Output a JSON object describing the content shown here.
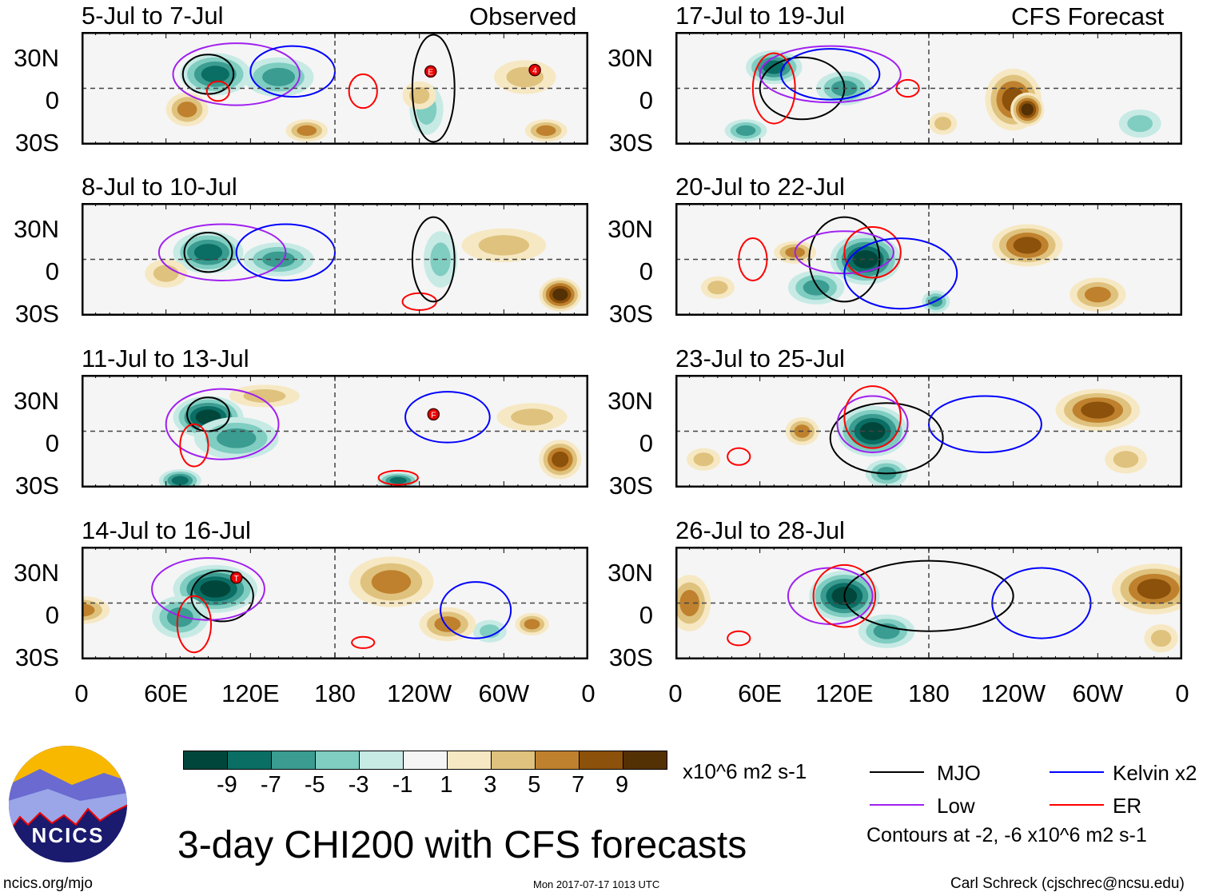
{
  "colors": {
    "scale": [
      "#01463a",
      "#0a6e64",
      "#3b9c91",
      "#80cdc1",
      "#c7eae5",
      "#f5f5f5",
      "#f6e8c3",
      "#dfc27d",
      "#bf812d",
      "#8c510a",
      "#543005"
    ],
    "MJO": "#000000",
    "Kelvin": "#0000ff",
    "Low": "#a020f0",
    "ER": "#ff0000"
  },
  "headers": {
    "left": "Observed",
    "right": "CFS Forecast"
  },
  "ylabels": [
    "30N",
    "0",
    "30S"
  ],
  "xlabels": [
    "0",
    "60E",
    "120E",
    "180",
    "120W",
    "60W",
    "0"
  ],
  "colorbar": {
    "labels": [
      "-9",
      "-7",
      "-5",
      "-3",
      "-1",
      "1",
      "3",
      "5",
      "7",
      "9"
    ],
    "units": "x10^6 m2 s-1"
  },
  "legend": {
    "items": [
      {
        "key": "MJO",
        "label": "MJO"
      },
      {
        "key": "Kelvin",
        "label": "Kelvin x2"
      },
      {
        "key": "Low",
        "label": "Low"
      },
      {
        "key": "ER",
        "label": "ER"
      }
    ],
    "note": "Contours at -2, -6 x10^6 m2 s-1"
  },
  "title": "3-day CHI200 with CFS forecasts",
  "footer": {
    "url": "ncics.org/mjo",
    "timestamp": "Mon 2017-07-17 1013 UTC",
    "author": "Carl Schreck (cjschrec@ncsu.edu)"
  },
  "logo": {
    "text": "NCICS"
  },
  "chart_data": [
    {
      "type": "heatmap",
      "title": "5-Jul to 7-Jul",
      "blobs": [
        [
          95,
          10,
          25,
          15,
          -7
        ],
        [
          140,
          8,
          25,
          14,
          -5
        ],
        [
          245,
          -15,
          12,
          18,
          -3
        ],
        [
          75,
          -15,
          15,
          12,
          5
        ],
        [
          240,
          -5,
          12,
          10,
          3
        ],
        [
          315,
          8,
          22,
          12,
          3
        ],
        [
          330,
          -30,
          15,
          8,
          6
        ],
        [
          160,
          -30,
          15,
          8,
          5
        ]
      ],
      "contours": [
        [
          "MJO",
          90,
          10,
          18,
          14
        ],
        [
          "Low",
          110,
          10,
          45,
          22
        ],
        [
          "Kelvin",
          150,
          12,
          30,
          18
        ],
        [
          "ER",
          200,
          -2,
          10,
          12
        ],
        [
          "ER",
          97,
          -2,
          8,
          7
        ],
        [
          "MJO",
          250,
          0,
          15,
          38
        ]
      ],
      "storms": [
        [
          "E",
          248,
          12
        ],
        [
          "4",
          322,
          13
        ]
      ]
    },
    {
      "type": "heatmap",
      "title": "8-Jul to 10-Jul",
      "blobs": [
        [
          90,
          5,
          25,
          15,
          -7
        ],
        [
          140,
          0,
          25,
          12,
          -5
        ],
        [
          255,
          0,
          12,
          20,
          -3
        ],
        [
          340,
          -25,
          15,
          12,
          9
        ],
        [
          300,
          10,
          30,
          12,
          3
        ],
        [
          60,
          -10,
          15,
          10,
          3
        ]
      ],
      "contours": [
        [
          "MJO",
          90,
          5,
          17,
          14
        ],
        [
          "Low",
          100,
          5,
          45,
          20
        ],
        [
          "Kelvin",
          145,
          5,
          35,
          20
        ],
        [
          "ER",
          240,
          -30,
          12,
          6
        ],
        [
          "MJO",
          250,
          0,
          15,
          30
        ]
      ],
      "storms": []
    },
    {
      "type": "heatmap",
      "title": "11-Jul to 13-Jul",
      "blobs": [
        [
          90,
          10,
          25,
          15,
          -9
        ],
        [
          110,
          -5,
          30,
          15,
          -5
        ],
        [
          70,
          -35,
          15,
          8,
          -7
        ],
        [
          225,
          -35,
          15,
          6,
          -7
        ],
        [
          340,
          -20,
          15,
          14,
          7
        ],
        [
          320,
          10,
          25,
          10,
          3
        ],
        [
          130,
          25,
          25,
          8,
          3
        ]
      ],
      "contours": [
        [
          "MJO",
          90,
          12,
          15,
          12
        ],
        [
          "Low",
          100,
          5,
          40,
          25
        ],
        [
          "ER",
          80,
          -10,
          10,
          15
        ],
        [
          "Kelvin",
          260,
          10,
          30,
          18
        ],
        [
          "ER",
          225,
          -33,
          14,
          5
        ]
      ],
      "storms": [
        [
          "F",
          250,
          12
        ]
      ]
    },
    {
      "type": "heatmap",
      "title": "14-Jul to 16-Jul",
      "blobs": [
        [
          95,
          10,
          30,
          17,
          -9
        ],
        [
          70,
          -10,
          20,
          15,
          -5
        ],
        [
          290,
          -20,
          12,
          8,
          -3
        ],
        [
          0,
          -5,
          20,
          10,
          5
        ],
        [
          220,
          15,
          30,
          18,
          5
        ],
        [
          260,
          -15,
          20,
          12,
          5
        ],
        [
          320,
          -15,
          12,
          8,
          6
        ]
      ],
      "contours": [
        [
          "MJO",
          100,
          5,
          22,
          18
        ],
        [
          "Low",
          90,
          10,
          40,
          22
        ],
        [
          "ER",
          80,
          -15,
          12,
          20
        ],
        [
          "Kelvin",
          280,
          -5,
          25,
          20
        ],
        [
          "ER",
          200,
          -28,
          8,
          4
        ]
      ],
      "storms": [
        [
          "T",
          110,
          18
        ]
      ]
    },
    {
      "type": "heatmap",
      "title": "17-Jul to 19-Jul",
      "blobs": [
        [
          70,
          15,
          20,
          12,
          -7
        ],
        [
          120,
          0,
          20,
          12,
          -5
        ],
        [
          50,
          -30,
          15,
          8,
          -5
        ],
        [
          240,
          -8,
          20,
          22,
          7
        ],
        [
          250,
          -15,
          12,
          12,
          9
        ],
        [
          190,
          -25,
          10,
          8,
          3
        ],
        [
          330,
          -25,
          15,
          10,
          -3
        ]
      ],
      "contours": [
        [
          "MJO",
          90,
          0,
          30,
          22
        ],
        [
          "Low",
          110,
          10,
          50,
          20
        ],
        [
          "ER",
          70,
          0,
          15,
          25
        ],
        [
          "Kelvin",
          110,
          10,
          35,
          18
        ],
        [
          "ER",
          165,
          0,
          8,
          6
        ]
      ],
      "storms": []
    },
    {
      "type": "heatmap",
      "title": "20-Jul to 22-Jul",
      "blobs": [
        [
          135,
          0,
          25,
          18,
          -9
        ],
        [
          100,
          -20,
          20,
          12,
          -5
        ],
        [
          185,
          -30,
          10,
          8,
          -5
        ],
        [
          250,
          10,
          25,
          15,
          7
        ],
        [
          300,
          -25,
          20,
          12,
          6
        ],
        [
          85,
          5,
          15,
          8,
          5
        ],
        [
          30,
          -20,
          12,
          8,
          3
        ]
      ],
      "contours": [
        [
          "MJO",
          120,
          0,
          25,
          30
        ],
        [
          "Low",
          120,
          5,
          35,
          15
        ],
        [
          "ER",
          140,
          5,
          20,
          18
        ],
        [
          "ER",
          55,
          0,
          10,
          15
        ],
        [
          "Kelvin",
          160,
          -10,
          40,
          25
        ]
      ],
      "storms": []
    },
    {
      "type": "heatmap",
      "title": "23-Jul to 25-Jul",
      "blobs": [
        [
          140,
          0,
          25,
          18,
          -9
        ],
        [
          150,
          -30,
          15,
          10,
          -5
        ],
        [
          90,
          0,
          12,
          10,
          5
        ],
        [
          300,
          15,
          30,
          15,
          7
        ],
        [
          320,
          -20,
          15,
          10,
          3
        ],
        [
          20,
          -20,
          12,
          8,
          3
        ]
      ],
      "contours": [
        [
          "MJO",
          150,
          -5,
          40,
          25
        ],
        [
          "Low",
          140,
          5,
          25,
          20
        ],
        [
          "ER",
          140,
          10,
          20,
          22
        ],
        [
          "ER",
          45,
          -18,
          8,
          6
        ],
        [
          "Kelvin",
          220,
          5,
          40,
          20
        ]
      ],
      "storms": []
    },
    {
      "type": "heatmap",
      "title": "26-Jul to 28-Jul",
      "blobs": [
        [
          120,
          5,
          25,
          18,
          -9
        ],
        [
          150,
          -20,
          20,
          12,
          -5
        ],
        [
          340,
          10,
          30,
          18,
          7
        ],
        [
          345,
          -25,
          12,
          10,
          3
        ],
        [
          10,
          0,
          15,
          20,
          5
        ]
      ],
      "contours": [
        [
          "MJO",
          180,
          5,
          60,
          25
        ],
        [
          "Low",
          110,
          5,
          30,
          20
        ],
        [
          "ER",
          120,
          5,
          22,
          22
        ],
        [
          "Kelvin",
          260,
          0,
          35,
          25
        ],
        [
          "ER",
          45,
          -25,
          8,
          5
        ]
      ],
      "storms": []
    }
  ]
}
